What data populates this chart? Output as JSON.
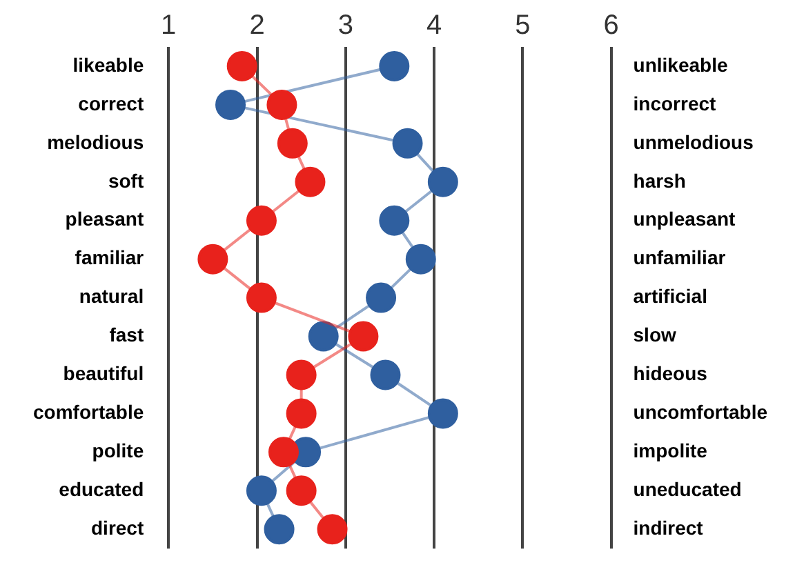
{
  "chart_data": {
    "type": "line",
    "categories": [
      "likeable",
      "correct",
      "melodious",
      "soft",
      "pleasant",
      "familiar",
      "natural",
      "fast",
      "beautiful",
      "comfortable",
      "polite",
      "educated",
      "direct"
    ],
    "y2_categories": [
      "unlikeable",
      "incorrect",
      "unmelodious",
      "harsh",
      "unpleasant",
      "unfamiliar",
      "artificial",
      "slow",
      "hideous",
      "uncomfortable",
      "impolite",
      "uneducated",
      "indirect"
    ],
    "orientation": "horizontal",
    "series": [
      {
        "color": "#e8221c",
        "values": [
          1.83,
          2.28,
          2.4,
          2.6,
          2.05,
          1.5,
          2.05,
          3.2,
          2.5,
          2.5,
          2.3,
          2.5,
          2.85
        ]
      },
      {
        "color": "#2f5f9f",
        "values": [
          3.55,
          1.7,
          3.7,
          4.1,
          3.55,
          3.85,
          3.4,
          2.75,
          3.45,
          4.1,
          2.55,
          2.05,
          2.25
        ]
      }
    ],
    "xlim": [
      1,
      6
    ],
    "xticks": [
      1,
      2,
      3,
      4,
      5,
      6
    ],
    "grid": "x",
    "legend": false,
    "marker": "circle",
    "line_style": "solid"
  }
}
